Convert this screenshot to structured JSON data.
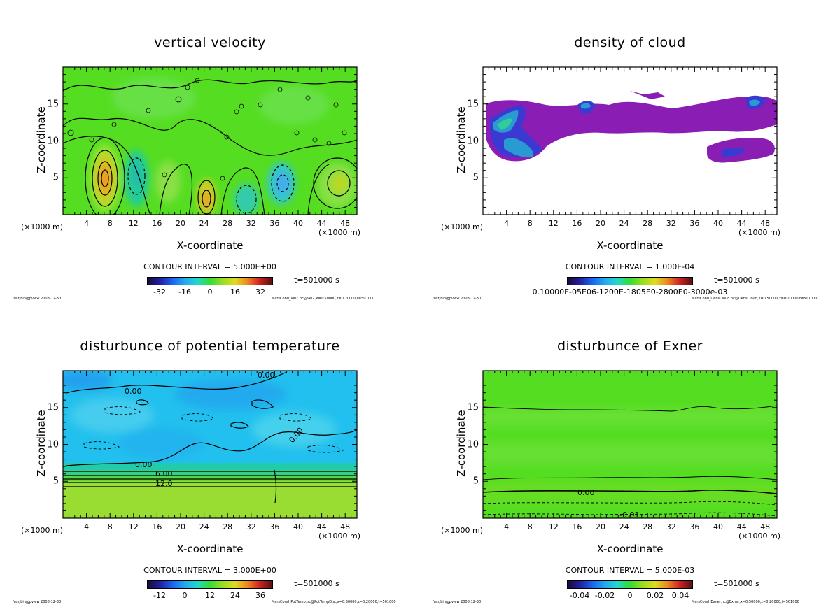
{
  "panels": [
    {
      "id": "vel",
      "title": "vertical velocity",
      "contour_interval": "CONTOUR INTERVAL = 5.000E+00",
      "time_label": "t=501000 s",
      "colorbar_ticks": [
        "-32",
        "-16",
        "0",
        "16",
        "32"
      ],
      "footer_left": "/usr/bin/gpview  2008-12-30",
      "footer_right": "MarsCond_VelZ.nc@VelZ,x=0:50000,z=0:20000,t=501000"
    },
    {
      "id": "cloud",
      "title": "density of cloud",
      "contour_interval": "CONTOUR INTERVAL = 1.000E-04",
      "time_label": "t=501000 s",
      "colorbar_ticks": [
        "0.10000E-05E06-1200E-1805E0-2800E0-3000e-03"
      ],
      "footer_left": "/usr/bin/gpview  2008-12-30",
      "footer_right": "MarsCond_DensCloud.nc@DensCloud,x=0:50000,z=0:20000,t=501000"
    },
    {
      "id": "theta",
      "title": "disturbunce of potential temperature",
      "contour_interval": "CONTOUR INTERVAL = 3.000E+00",
      "time_label": "t=501000 s",
      "colorbar_ticks": [
        "-12",
        "0",
        "12",
        "24",
        "36"
      ],
      "contour_labels": [
        "0.00",
        "0.00",
        "0.00",
        "6.00",
        "12.0",
        "0.00"
      ],
      "footer_left": "/usr/bin/gpview  2008-12-30",
      "footer_right": "MarsCond_PotTemp.nc@PotTempDist,x=0:50000,z=0:20000,t=501000"
    },
    {
      "id": "exner",
      "title": "disturbunce of Exner",
      "contour_interval": "CONTOUR INTERVAL = 5.000E-03",
      "time_label": "t=501000 s",
      "colorbar_ticks": [
        "-0.04",
        "-0.02",
        "0",
        "0.02",
        "0.04"
      ],
      "contour_labels": [
        "0.00",
        "-0.01"
      ],
      "footer_left": "/usr/bin/gpview  2008-12-30",
      "footer_right": "MarsCond_Exner.nc@Exner,x=0:50000,z=0:20000,t=501000"
    }
  ],
  "axes": {
    "xlabel": "X-coordinate",
    "ylabel": "Z-coordinate",
    "unit_left": "(×1000 m)",
    "unit_right": "(×1000 m)",
    "x_ticks": [
      "4",
      "8",
      "12",
      "16",
      "20",
      "24",
      "28",
      "32",
      "36",
      "40",
      "44",
      "48"
    ],
    "y_ticks": [
      "5",
      "10",
      "15"
    ]
  },
  "chart_data": [
    {
      "type": "heatmap",
      "title": "vertical velocity",
      "xlabel": "X-coordinate",
      "ylabel": "Z-coordinate",
      "xlim": [
        0,
        50
      ],
      "ylim": [
        0,
        20
      ],
      "x_ticks": [
        4,
        8,
        12,
        16,
        20,
        24,
        28,
        32,
        36,
        40,
        44,
        48
      ],
      "y_ticks": [
        5,
        10,
        15
      ],
      "contour_interval": 5.0,
      "colorbar_ticks": [
        -32,
        -16,
        0,
        16,
        32
      ],
      "features": [
        {
          "x": 7,
          "z": 5,
          "value": 30
        },
        {
          "x": 12,
          "z": 4,
          "value": -10
        },
        {
          "x": 17,
          "z": 4,
          "value": 6
        },
        {
          "x": 24.5,
          "z": 2.5,
          "value": 22
        },
        {
          "x": 31,
          "z": 3,
          "value": -6
        },
        {
          "x": 37,
          "z": 4,
          "value": -16
        },
        {
          "x": 47,
          "z": 4.5,
          "value": 12
        }
      ]
    },
    {
      "type": "heatmap",
      "title": "density of cloud",
      "xlabel": "X-coordinate",
      "ylabel": "Z-coordinate",
      "xlim": [
        0,
        50
      ],
      "ylim": [
        0,
        20
      ],
      "x_ticks": [
        4,
        8,
        12,
        16,
        20,
        24,
        28,
        32,
        36,
        40,
        44,
        48
      ],
      "y_ticks": [
        5,
        10,
        15
      ],
      "contour_interval": 0.0001,
      "features": [
        {
          "x": 5,
          "z": 11,
          "value": 0.0005
        },
        {
          "x": 17,
          "z": 14.5,
          "value": 0.0003
        },
        {
          "x": 46,
          "z": 14.5,
          "value": 0.0003
        },
        {
          "x": 41,
          "z": 8,
          "value": 0.0002
        }
      ]
    },
    {
      "type": "heatmap",
      "title": "disturbunce of potential temperature",
      "xlabel": "X-coordinate",
      "ylabel": "Z-coordinate",
      "xlim": [
        0,
        50
      ],
      "ylim": [
        0,
        20
      ],
      "x_ticks": [
        4,
        8,
        12,
        16,
        20,
        24,
        28,
        32,
        36,
        40,
        44,
        48
      ],
      "y_ticks": [
        5,
        10,
        15
      ],
      "contour_interval": 3.0,
      "colorbar_ticks": [
        -12,
        0,
        12,
        24,
        36
      ],
      "contour_levels_labeled": [
        0.0,
        6.0,
        12.0
      ]
    },
    {
      "type": "heatmap",
      "title": "disturbunce of Exner",
      "xlabel": "X-coordinate",
      "ylabel": "Z-coordinate",
      "xlim": [
        0,
        50
      ],
      "ylim": [
        0,
        20
      ],
      "x_ticks": [
        4,
        8,
        12,
        16,
        20,
        24,
        28,
        32,
        36,
        40,
        44,
        48
      ],
      "y_ticks": [
        5,
        10,
        15
      ],
      "contour_interval": 0.005,
      "colorbar_ticks": [
        -0.04,
        -0.02,
        0,
        0.02,
        0.04
      ],
      "contour_levels_labeled": [
        0.0,
        -0.01
      ]
    }
  ]
}
